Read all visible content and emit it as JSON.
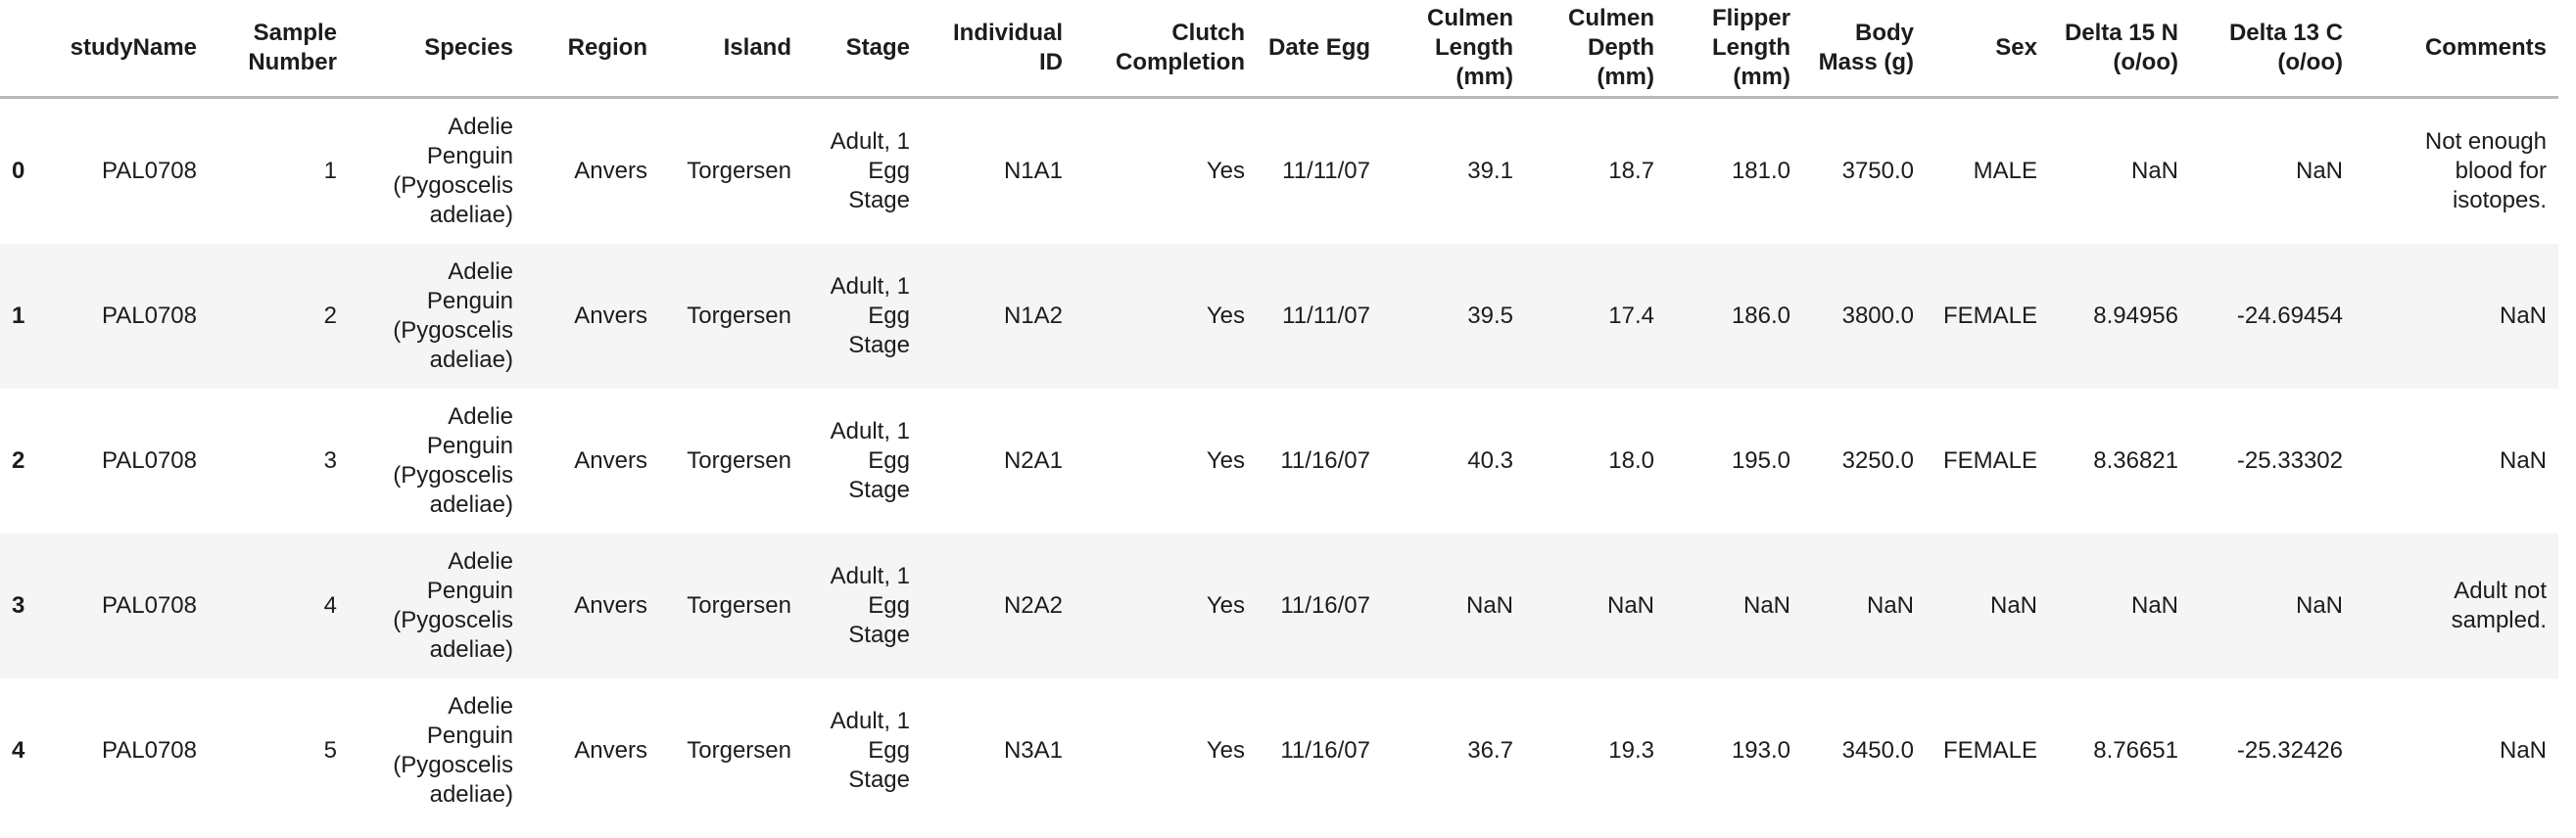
{
  "colors": {
    "stripe_background": "#f5f5f5",
    "header_divider": "#b9b9b9",
    "text": "#1c1c1e",
    "page_background": "#ffffff"
  },
  "chart_data": {
    "type": "table",
    "index_label": "",
    "columns": [
      "studyName",
      "Sample Number",
      "Species",
      "Region",
      "Island",
      "Stage",
      "Individual ID",
      "Clutch Completion",
      "Date Egg",
      "Culmen Length (mm)",
      "Culmen Depth (mm)",
      "Flipper Length (mm)",
      "Body Mass (g)",
      "Sex",
      "Delta 15 N (o/oo)",
      "Delta 13 C (o/oo)",
      "Comments"
    ],
    "rows": [
      {
        "index": "0",
        "cells": [
          "PAL0708",
          "1",
          "Adelie Penguin (Pygoscelis adeliae)",
          "Anvers",
          "Torgersen",
          "Adult, 1 Egg Stage",
          "N1A1",
          "Yes",
          "11/11/07",
          "39.1",
          "18.7",
          "181.0",
          "3750.0",
          "MALE",
          "NaN",
          "NaN",
          "Not enough blood for isotopes."
        ]
      },
      {
        "index": "1",
        "cells": [
          "PAL0708",
          "2",
          "Adelie Penguin (Pygoscelis adeliae)",
          "Anvers",
          "Torgersen",
          "Adult, 1 Egg Stage",
          "N1A2",
          "Yes",
          "11/11/07",
          "39.5",
          "17.4",
          "186.0",
          "3800.0",
          "FEMALE",
          "8.94956",
          "-24.69454",
          "NaN"
        ]
      },
      {
        "index": "2",
        "cells": [
          "PAL0708",
          "3",
          "Adelie Penguin (Pygoscelis adeliae)",
          "Anvers",
          "Torgersen",
          "Adult, 1 Egg Stage",
          "N2A1",
          "Yes",
          "11/16/07",
          "40.3",
          "18.0",
          "195.0",
          "3250.0",
          "FEMALE",
          "8.36821",
          "-25.33302",
          "NaN"
        ]
      },
      {
        "index": "3",
        "cells": [
          "PAL0708",
          "4",
          "Adelie Penguin (Pygoscelis adeliae)",
          "Anvers",
          "Torgersen",
          "Adult, 1 Egg Stage",
          "N2A2",
          "Yes",
          "11/16/07",
          "NaN",
          "NaN",
          "NaN",
          "NaN",
          "NaN",
          "NaN",
          "NaN",
          "Adult not sampled."
        ]
      },
      {
        "index": "4",
        "cells": [
          "PAL0708",
          "5",
          "Adelie Penguin (Pygoscelis adeliae)",
          "Anvers",
          "Torgersen",
          "Adult, 1 Egg Stage",
          "N3A1",
          "Yes",
          "11/16/07",
          "36.7",
          "19.3",
          "193.0",
          "3450.0",
          "FEMALE",
          "8.76651",
          "-25.32426",
          "NaN"
        ]
      }
    ]
  }
}
